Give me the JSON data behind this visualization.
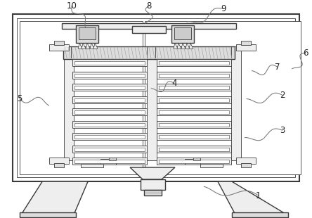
{
  "bg_color": "#ffffff",
  "line_color": "#3a3a3a",
  "fill_white": "#ffffff",
  "fill_light": "#eeeeee",
  "fill_mid": "#dddddd",
  "fill_dark": "#cccccc",
  "shelf_fill": "#e8e8e8",
  "hatch_color": "#888888"
}
